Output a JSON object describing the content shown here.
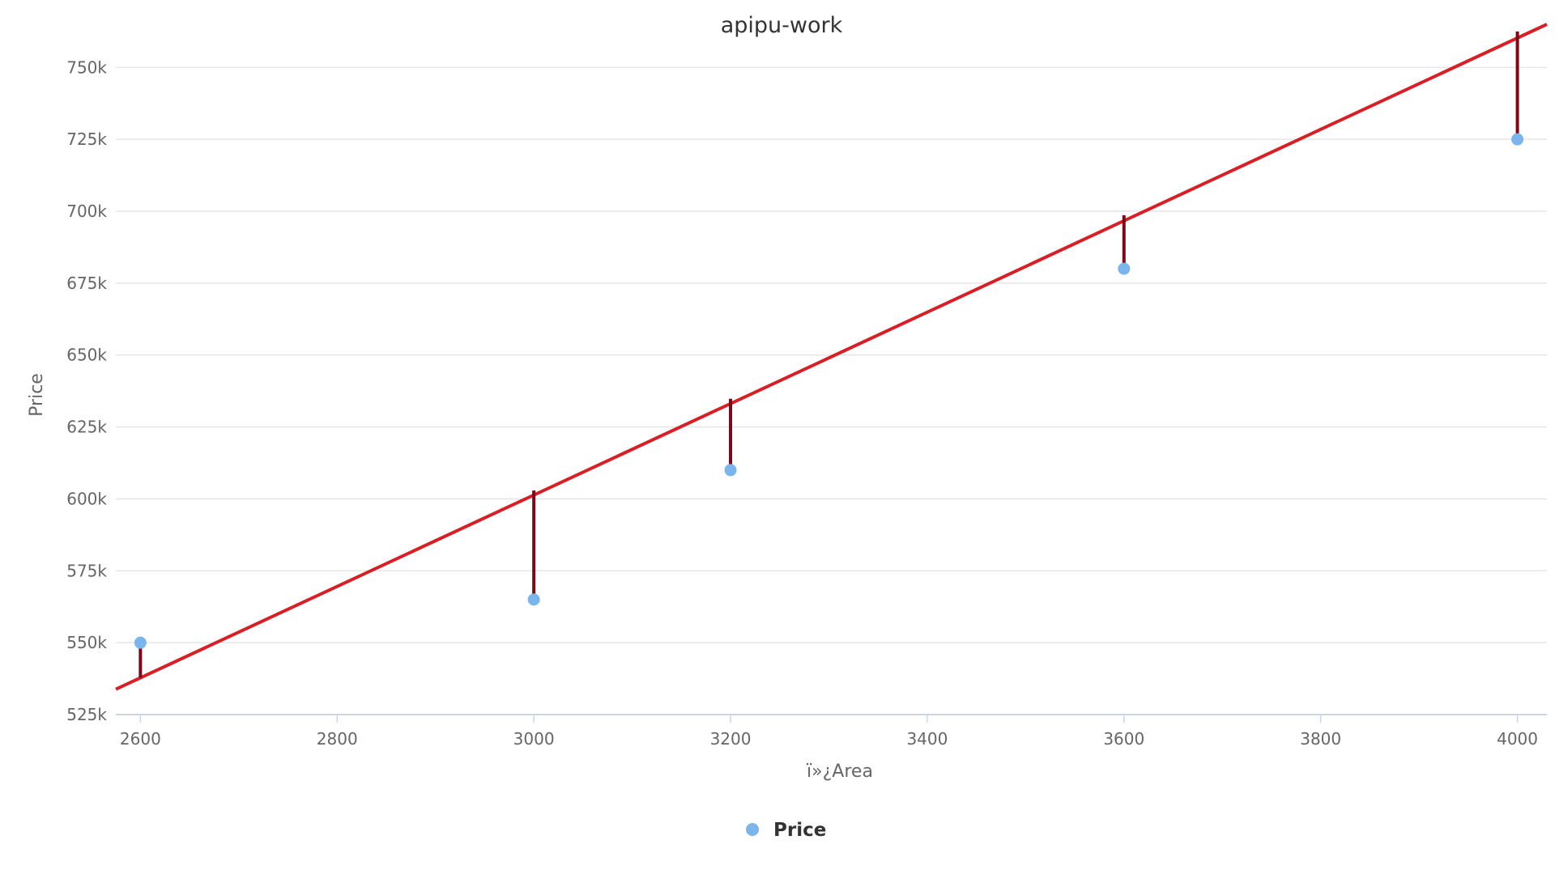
{
  "chart_data": {
    "type": "scatter",
    "title": "apipu-work",
    "xlabel": "ï»¿Area",
    "ylabel": "Price",
    "xlim": [
      2575,
      4030
    ],
    "ylim": [
      525000,
      765000
    ],
    "x_ticks": [
      2600,
      2800,
      3000,
      3200,
      3400,
      3600,
      3800,
      4000
    ],
    "x_tick_labels": [
      "2600",
      "2800",
      "3000",
      "3200",
      "3400",
      "3600",
      "3800",
      "4000"
    ],
    "y_ticks": [
      525000,
      550000,
      575000,
      600000,
      625000,
      650000,
      675000,
      700000,
      725000,
      750000
    ],
    "y_tick_labels": [
      "525k",
      "550k",
      "575k",
      "600k",
      "625k",
      "650k",
      "675k",
      "700k",
      "725k",
      "750k"
    ],
    "grid": true,
    "legend_position": "bottom-center",
    "series": [
      {
        "name": "Price",
        "type": "scatter",
        "color": "#7cb5ec",
        "points": [
          {
            "x": 2600,
            "y": 550000
          },
          {
            "x": 3000,
            "y": 565000
          },
          {
            "x": 3200,
            "y": 610000
          },
          {
            "x": 3600,
            "y": 680000
          },
          {
            "x": 4000,
            "y": 725000
          }
        ]
      }
    ],
    "regression_line": {
      "color": "#d62027",
      "start": {
        "x": 2575,
        "y": 533800
      },
      "end": {
        "x": 4030,
        "y": 765000
      }
    },
    "residuals": {
      "color": "#7a0a1a",
      "segments": [
        {
          "x": 2600,
          "from": 550000,
          "to": 537800
        },
        {
          "x": 3000,
          "from": 565000,
          "to": 602900
        },
        {
          "x": 3200,
          "from": 610000,
          "to": 634800
        },
        {
          "x": 3600,
          "from": 680000,
          "to": 698600
        },
        {
          "x": 4000,
          "from": 725000,
          "to": 762500
        }
      ]
    },
    "legend": [
      {
        "label": "Price",
        "color": "#7cb5ec",
        "marker": "circle"
      }
    ]
  }
}
